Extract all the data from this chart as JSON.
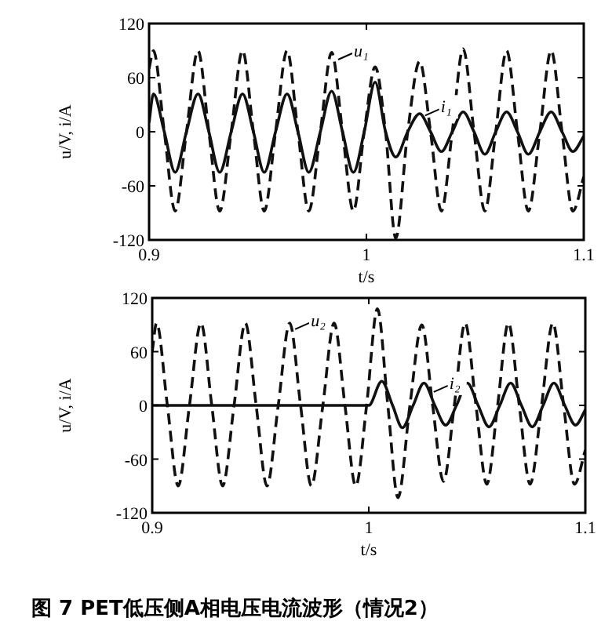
{
  "chart_data": [
    {
      "type": "line",
      "xlabel": "t/s",
      "ylabel": "u/V, i/A",
      "xlim": [
        0.9,
        1.1
      ],
      "xticks": [
        0.9,
        1,
        1.1
      ],
      "ylim": [
        -120,
        120
      ],
      "yticks": [
        -120,
        -60,
        0,
        60,
        120
      ],
      "grid": false,
      "x": [
        0.9,
        0.902,
        0.907,
        0.912,
        0.9172,
        0.9225,
        0.9275,
        0.9325,
        0.9378,
        0.943,
        0.948,
        0.953,
        0.9582,
        0.9635,
        0.9685,
        0.9735,
        0.9788,
        0.984,
        0.989,
        0.994,
        0.999,
        1.004,
        1.0088,
        1.0135,
        1.019,
        1.0245,
        1.0295,
        1.0345,
        1.0395,
        1.0445,
        1.0495,
        1.0545,
        1.0595,
        1.0645,
        1.0695,
        1.0745,
        1.0798,
        1.085,
        1.09,
        1.095,
        1.1
      ],
      "series": [
        {
          "color": "#111111",
          "line_style": "dashed",
          "values": [
            70,
            90,
            0,
            -88,
            0,
            90,
            0,
            -88,
            0,
            90,
            0,
            -88,
            0,
            90,
            0,
            -88,
            0,
            88,
            0,
            -88,
            0,
            72,
            0,
            -118,
            0,
            78,
            0,
            -88,
            0,
            92,
            0,
            -88,
            0,
            90,
            0,
            -88,
            0,
            90,
            0,
            -88,
            -50
          ]
        },
        {
          "color": "#111111",
          "line_style": "solid",
          "values": [
            10,
            42,
            0,
            -45,
            0,
            42,
            0,
            -45,
            0,
            42,
            0,
            -45,
            0,
            42,
            0,
            -45,
            0,
            45,
            0,
            -45,
            0,
            55,
            0,
            -28,
            0,
            20,
            0,
            -22,
            0,
            22,
            0,
            -25,
            0,
            22,
            0,
            -25,
            0,
            22,
            0,
            -22,
            -5
          ]
        }
      ],
      "annotations": [
        {
          "text": "u₁",
          "x": 0.987,
          "y": 80
        },
        {
          "text": "i₁",
          "x": 1.027,
          "y": 18
        }
      ]
    },
    {
      "type": "line",
      "xlabel": "t/s",
      "ylabel": "u/V, i/A",
      "xlim": [
        0.9,
        1.1
      ],
      "xticks": [
        0.9,
        1,
        1.1
      ],
      "ylim": [
        -120,
        120
      ],
      "yticks": [
        -120,
        -60,
        0,
        60,
        120
      ],
      "grid": false,
      "x": [
        0.9,
        0.902,
        0.907,
        0.912,
        0.9172,
        0.9225,
        0.9275,
        0.9325,
        0.9378,
        0.943,
        0.948,
        0.953,
        0.9582,
        0.9635,
        0.9685,
        0.9735,
        0.9788,
        0.984,
        0.989,
        0.994,
        0.999,
        1.004,
        1.0088,
        1.0135,
        1.019,
        1.0245,
        1.0295,
        1.0345,
        1.0395,
        1.0445,
        1.0495,
        1.0545,
        1.0595,
        1.0645,
        1.0695,
        1.0745,
        1.0798,
        1.085,
        1.09,
        1.095,
        1.1
      ],
      "series": [
        {
          "color": "#111111",
          "line_style": "dashed",
          "values": [
            60,
            92,
            0,
            -90,
            0,
            92,
            0,
            -90,
            0,
            92,
            0,
            -90,
            0,
            92,
            0,
            -90,
            0,
            92,
            0,
            -90,
            0,
            108,
            0,
            -103,
            0,
            90,
            0,
            -85,
            0,
            92,
            0,
            -88,
            0,
            92,
            0,
            -88,
            0,
            92,
            0,
            -88,
            -50
          ]
        },
        {
          "color": "#111111",
          "line_style": "solid",
          "x": [
            0.9,
            1.0,
            1.006,
            1.011,
            1.0155,
            1.0205,
            1.0255,
            1.0305,
            1.0355,
            1.0405,
            1.0455,
            1.0505,
            1.0555,
            1.0605,
            1.0655,
            1.0705,
            1.0755,
            1.0805,
            1.0855,
            1.0905,
            1.0955,
            1.1
          ],
          "values": [
            0,
            0,
            27,
            0,
            -25,
            0,
            25,
            0,
            -22,
            0,
            25,
            0,
            -24,
            0,
            25,
            0,
            -24,
            0,
            25,
            0,
            -22,
            -5
          ]
        }
      ],
      "annotations": [
        {
          "text": "u₂",
          "x": 0.966,
          "y": 85
        },
        {
          "text": "i₂",
          "x": 1.03,
          "y": 15
        },
        "图 7  PET低压侧A相电压电流波形（情况2）"
      ]
    }
  ]
}
